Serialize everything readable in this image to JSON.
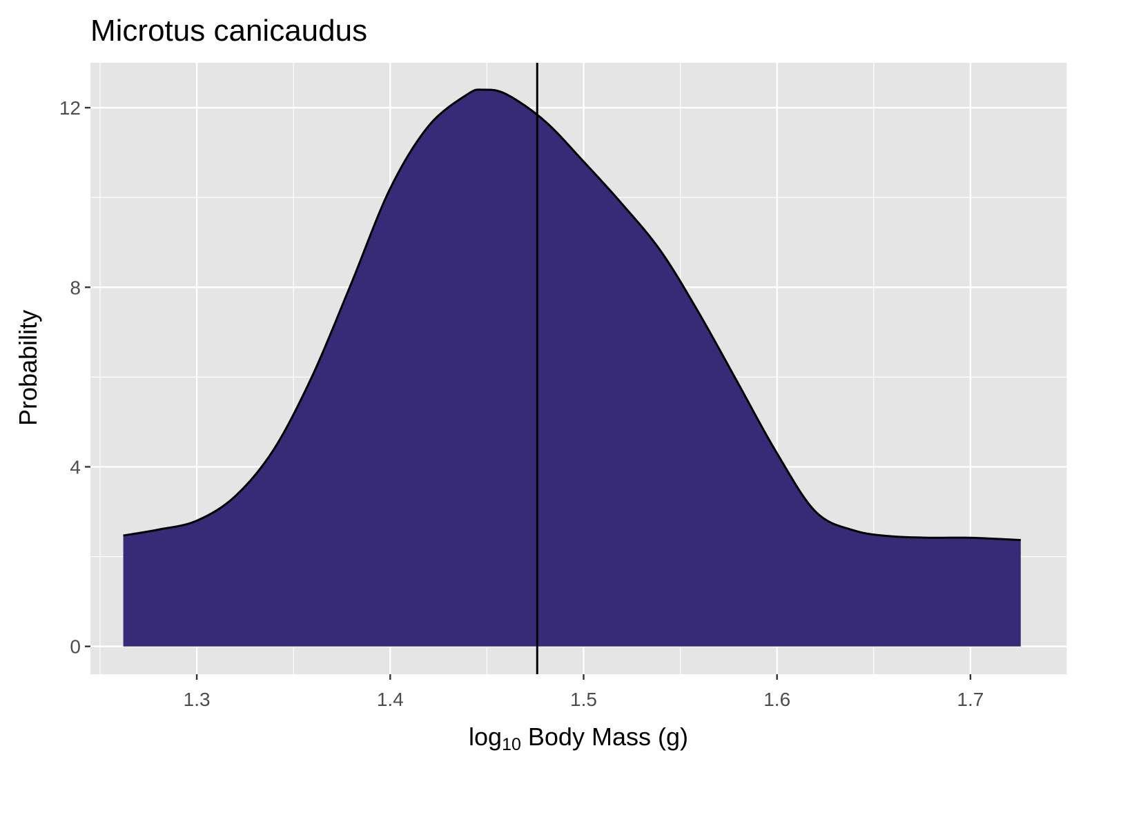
{
  "chart_data": {
    "type": "area",
    "title": "Microtus canicaudus",
    "xlabel": {
      "prefix": "log",
      "subscript": "10",
      "rest": " Body Mass (g)"
    },
    "ylabel": "Probability",
    "xlim": [
      1.245,
      1.75
    ],
    "ylim": [
      -0.62,
      13.0
    ],
    "x_ticks": [
      1.3,
      1.4,
      1.5,
      1.6,
      1.7
    ],
    "x_tick_labels": [
      "1.3",
      "1.4",
      "1.5",
      "1.6",
      "1.7"
    ],
    "y_ticks": [
      0,
      4,
      8,
      12
    ],
    "y_tick_labels": [
      "0",
      "4",
      "8",
      "12"
    ],
    "grid": true,
    "fill_color": "#372a76",
    "line_color": "#000000",
    "panel_color": "#e5e5e5",
    "grid_color": "#ffffff",
    "vline_x": 1.476,
    "series": [
      {
        "x": [
          1.262,
          1.28,
          1.3,
          1.32,
          1.34,
          1.36,
          1.38,
          1.4,
          1.42,
          1.44,
          1.448,
          1.46,
          1.48,
          1.5,
          1.52,
          1.54,
          1.56,
          1.58,
          1.6,
          1.62,
          1.64,
          1.66,
          1.68,
          1.7,
          1.726
        ],
        "values": [
          2.47,
          2.6,
          2.8,
          3.35,
          4.4,
          6.05,
          8.1,
          10.2,
          11.6,
          12.3,
          12.4,
          12.3,
          11.7,
          10.8,
          9.85,
          8.8,
          7.4,
          5.85,
          4.3,
          3.0,
          2.58,
          2.45,
          2.42,
          2.42,
          2.37
        ]
      }
    ]
  }
}
